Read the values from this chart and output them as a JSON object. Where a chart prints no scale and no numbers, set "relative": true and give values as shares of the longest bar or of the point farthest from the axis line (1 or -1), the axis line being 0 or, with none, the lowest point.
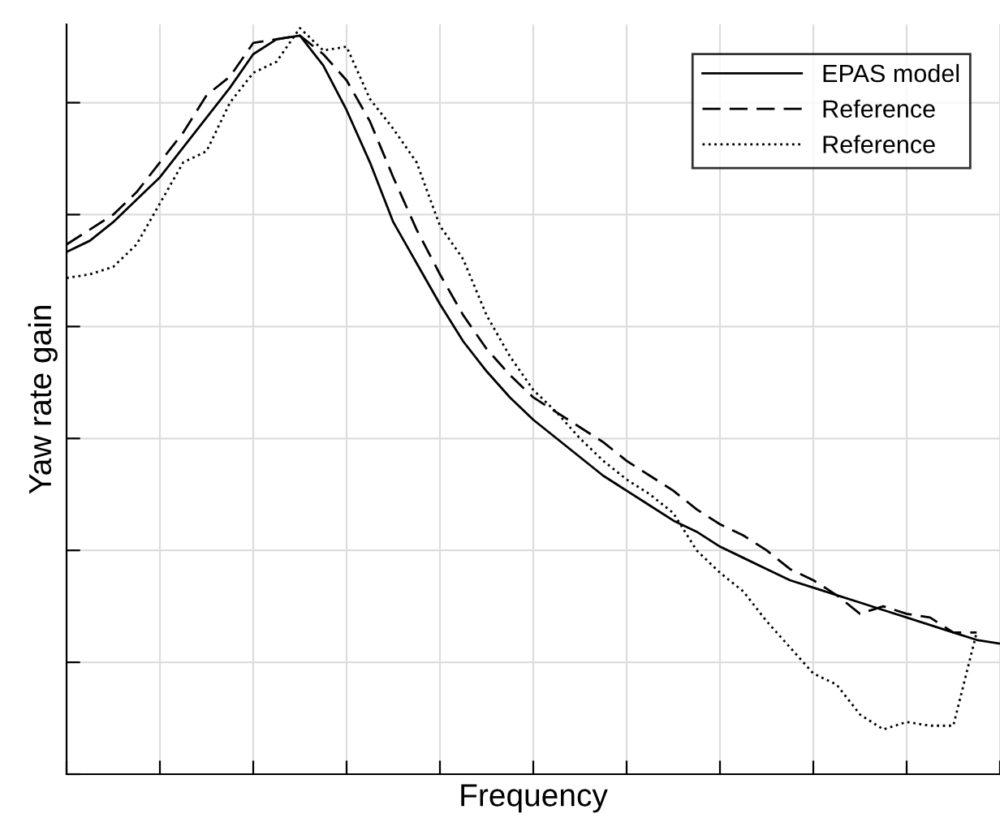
{
  "chart_data": {
    "type": "line",
    "xlabel": "Frequency",
    "ylabel": "Yaw rate gain",
    "relative": true,
    "grid": true,
    "legend": "top right",
    "tick_labels": false,
    "marker": "none",
    "categories": [
      null,
      null,
      null,
      null,
      null,
      null,
      null,
      null,
      null,
      null,
      null,
      null,
      null,
      null,
      null,
      null,
      null,
      null,
      null,
      null,
      null,
      null,
      null,
      null,
      null,
      null,
      null,
      null,
      null,
      null,
      null,
      null,
      null,
      null,
      null,
      null,
      null,
      null,
      null,
      null,
      null
    ],
    "series": [
      {
        "name": "EPAS model",
        "color": "#000000",
        "line_style": "solid",
        "values": [
          0.7,
          0.715,
          0.74,
          0.77,
          0.8,
          0.84,
          0.88,
          0.92,
          0.965,
          0.985,
          0.99,
          0.95,
          0.89,
          0.82,
          0.74,
          0.685,
          0.63,
          0.58,
          0.54,
          0.505,
          0.475,
          0.45,
          0.425,
          0.4,
          0.38,
          0.36,
          0.34,
          0.325,
          0.305,
          0.29,
          0.275,
          0.26,
          0.25,
          0.24,
          0.23,
          0.22,
          0.21,
          0.2,
          0.19,
          0.18,
          0.175
        ]
      },
      {
        "name": "Reference",
        "color": "#000000",
        "line_style": "dashed",
        "values": [
          0.71,
          0.73,
          0.75,
          0.78,
          0.82,
          0.86,
          0.91,
          0.935,
          0.98,
          0.985,
          0.99,
          0.965,
          0.93,
          0.875,
          0.8,
          0.73,
          0.67,
          0.615,
          0.57,
          0.535,
          0.505,
          0.485,
          0.465,
          0.445,
          0.42,
          0.4,
          0.38,
          0.355,
          0.335,
          0.32,
          0.3,
          0.275,
          0.26,
          0.24,
          0.215,
          0.225,
          0.215,
          0.21,
          0.19,
          0.19,
          null
        ]
      },
      {
        "name": "Reference",
        "color": "#000000",
        "line_style": "dotted",
        "values": [
          0.665,
          0.67,
          0.68,
          0.71,
          0.765,
          0.82,
          0.835,
          0.9,
          0.94,
          0.955,
          1.0,
          0.97,
          0.975,
          0.905,
          0.865,
          0.82,
          0.735,
          0.69,
          0.615,
          0.56,
          0.515,
          0.485,
          0.45,
          0.42,
          0.395,
          0.375,
          0.35,
          0.3,
          0.27,
          0.245,
          0.205,
          0.17,
          0.135,
          0.12,
          0.08,
          0.06,
          0.07,
          0.065,
          0.065,
          0.19,
          null
        ]
      }
    ]
  }
}
